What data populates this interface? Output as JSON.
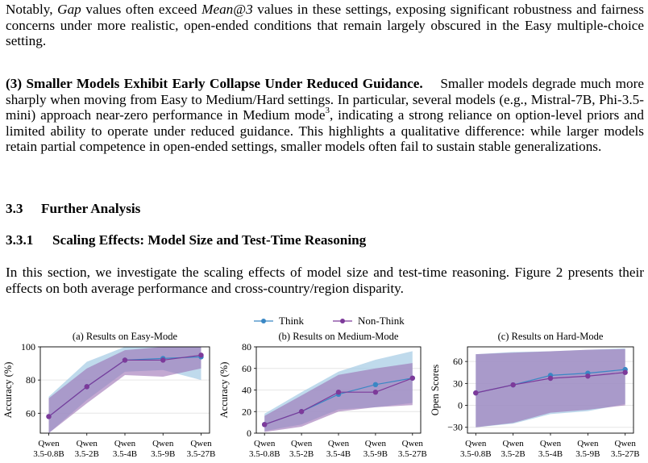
{
  "paragraph_1": {
    "part1": "Notably, ",
    "gap": "Gap",
    "part2": " values often exceed ",
    "mean": "Mean@3",
    "part3": " values in these settings, exposing significant robustness and fairness concerns under more realistic, open-ended conditions that remain largely obscured in the Easy multiple-choice setting."
  },
  "paragraph_2": {
    "heading": "(3) Smaller Models Exhibit Early Collapse Under Reduced Guidance.",
    "part1": "Smaller models degrade much more sharply when moving from Easy to Medium/Hard settings. In particular, several models (e.g., Mistral-7B, Phi-3.5-mini) approach near-zero performance in Medium mode",
    "footnote": "3",
    "part2": ", indicating a strong reliance on option-level priors and limited ability to operate under reduced guidance. This highlights a qualitative difference: while larger models retain partial competence in open-ended settings, smaller models often fail to sustain stable generalizations."
  },
  "section": {
    "number": "3.3",
    "title": "Further Analysis"
  },
  "subsection": {
    "number": "3.3.1",
    "title": "Scaling Effects: Model Size and Test-Time Reasoning"
  },
  "paragraph_3": "In this section, we investigate the scaling effects of model size and test-time reasoning. Figure 2 presents their effects on both average performance and cross-country/region disparity.",
  "colors": {
    "think": "#3a87c4",
    "non_think": "#7d3a9a",
    "think_band": "#a9cde6",
    "non_think_band": "#9b6fb4"
  },
  "chart_data": [
    {
      "type": "line",
      "title": "(a) Results on Easy-Mode",
      "ylabel": "Accuracy (%)",
      "ylim": [
        48,
        100
      ],
      "yticks": [
        60,
        80,
        100
      ],
      "categories": [
        [
          "Qwen",
          "3.5-0.8B"
        ],
        [
          "Qwen",
          "3.5-2B"
        ],
        [
          "Qwen",
          "3.5-4B"
        ],
        [
          "Qwen",
          "3.5-9B"
        ],
        [
          "Qwen",
          "3.5-27B"
        ]
      ],
      "series": [
        {
          "name": "Think",
          "values": [
            58,
            76,
            92,
            93,
            94
          ],
          "band_low": [
            47,
            68,
            85,
            86,
            80
          ],
          "band_high": [
            70,
            91,
            100,
            100,
            100
          ]
        },
        {
          "name": "Non-Think",
          "values": [
            58,
            76,
            92,
            92,
            95
          ],
          "band_low": [
            46,
            66,
            83,
            82,
            87
          ],
          "band_high": [
            69,
            87,
            98,
            100,
            100
          ]
        }
      ]
    },
    {
      "type": "line",
      "title": "(b) Results on Medium-Mode",
      "ylabel": "Accuracy (%)",
      "ylim": [
        0,
        80
      ],
      "yticks": [
        0,
        20,
        40,
        60,
        80
      ],
      "categories": [
        [
          "Qwen",
          "3.5-0.8B"
        ],
        [
          "Qwen",
          "3.5-2B"
        ],
        [
          "Qwen",
          "3.5-4B"
        ],
        [
          "Qwen",
          "3.5-9B"
        ],
        [
          "Qwen",
          "3.5-27B"
        ]
      ],
      "series": [
        {
          "name": "Think",
          "values": [
            8,
            20,
            36,
            45,
            51
          ],
          "band_low": [
            2,
            8,
            22,
            24,
            28
          ],
          "band_high": [
            18,
            38,
            57,
            68,
            76
          ]
        },
        {
          "name": "Non-Think",
          "values": [
            8,
            20,
            38,
            38,
            51
          ],
          "band_low": [
            1,
            6,
            20,
            24,
            26
          ],
          "band_high": [
            16,
            35,
            54,
            60,
            65
          ]
        }
      ]
    },
    {
      "type": "line",
      "title": "(c) Results on Hard-Mode",
      "ylabel": "Open Scores",
      "ylim": [
        -38,
        80
      ],
      "yticks": [
        -30,
        0,
        30,
        60
      ],
      "categories": [
        [
          "Qwen",
          "3.5-0.8B"
        ],
        [
          "Qwen",
          "3.5-2B"
        ],
        [
          "Qwen",
          "3.5-4B"
        ],
        [
          "Qwen",
          "3.5-9B"
        ],
        [
          "Qwen",
          "3.5-27B"
        ]
      ],
      "series": [
        {
          "name": "Think",
          "values": [
            17,
            28,
            41,
            44,
            49
          ],
          "band_low": [
            -30,
            -25,
            -12,
            -8,
            2
          ],
          "band_high": [
            70,
            73,
            74,
            76,
            78
          ]
        },
        {
          "name": "Non-Think",
          "values": [
            17,
            28,
            37,
            40,
            45
          ],
          "band_low": [
            -30,
            -24,
            -10,
            -6,
            0
          ],
          "band_high": [
            70,
            72,
            74,
            76,
            77
          ]
        }
      ]
    }
  ]
}
